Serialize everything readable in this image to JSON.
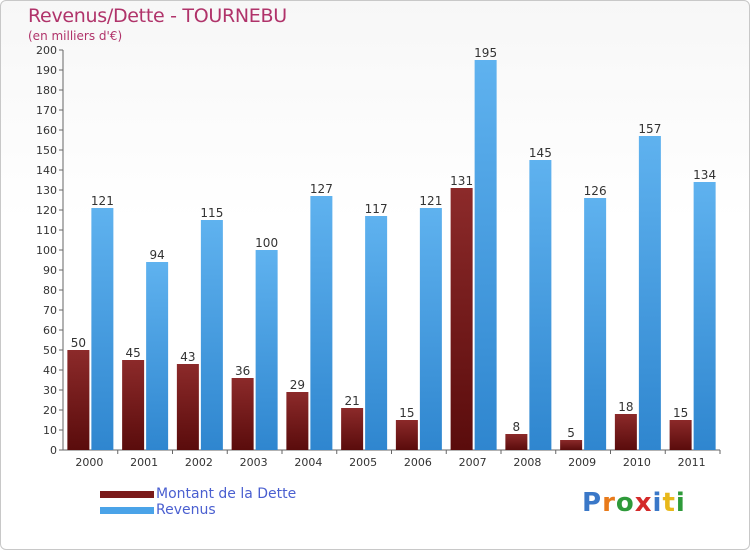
{
  "chart_data": {
    "type": "bar",
    "title": "Revenus/Dette - TOURNEBU",
    "subtitle": "(en milliers d'€)",
    "categories": [
      "2000",
      "2001",
      "2002",
      "2003",
      "2004",
      "2005",
      "2006",
      "2007",
      "2008",
      "2009",
      "2010",
      "2011"
    ],
    "series": [
      {
        "name": "Montant de la Dette",
        "color": "#7a1a1a",
        "values": [
          50,
          45,
          43,
          36,
          29,
          21,
          15,
          131,
          8,
          5,
          18,
          15
        ]
      },
      {
        "name": "Revenus",
        "color": "#4aa3e8",
        "values": [
          121,
          94,
          115,
          100,
          127,
          117,
          121,
          195,
          145,
          126,
          157,
          134
        ]
      }
    ],
    "ylim": [
      0,
      200
    ],
    "ytick_step": 10,
    "grid": false,
    "legend": "bottom-left"
  },
  "logo": {
    "letters": [
      "P",
      "r",
      "o",
      "x",
      "i",
      "t",
      "i"
    ],
    "colors": [
      "#3a78c8",
      "#e87a1a",
      "#2e9a3a",
      "#d42a2a",
      "#3a78c8",
      "#e8b81a",
      "#2e9a3a"
    ]
  }
}
